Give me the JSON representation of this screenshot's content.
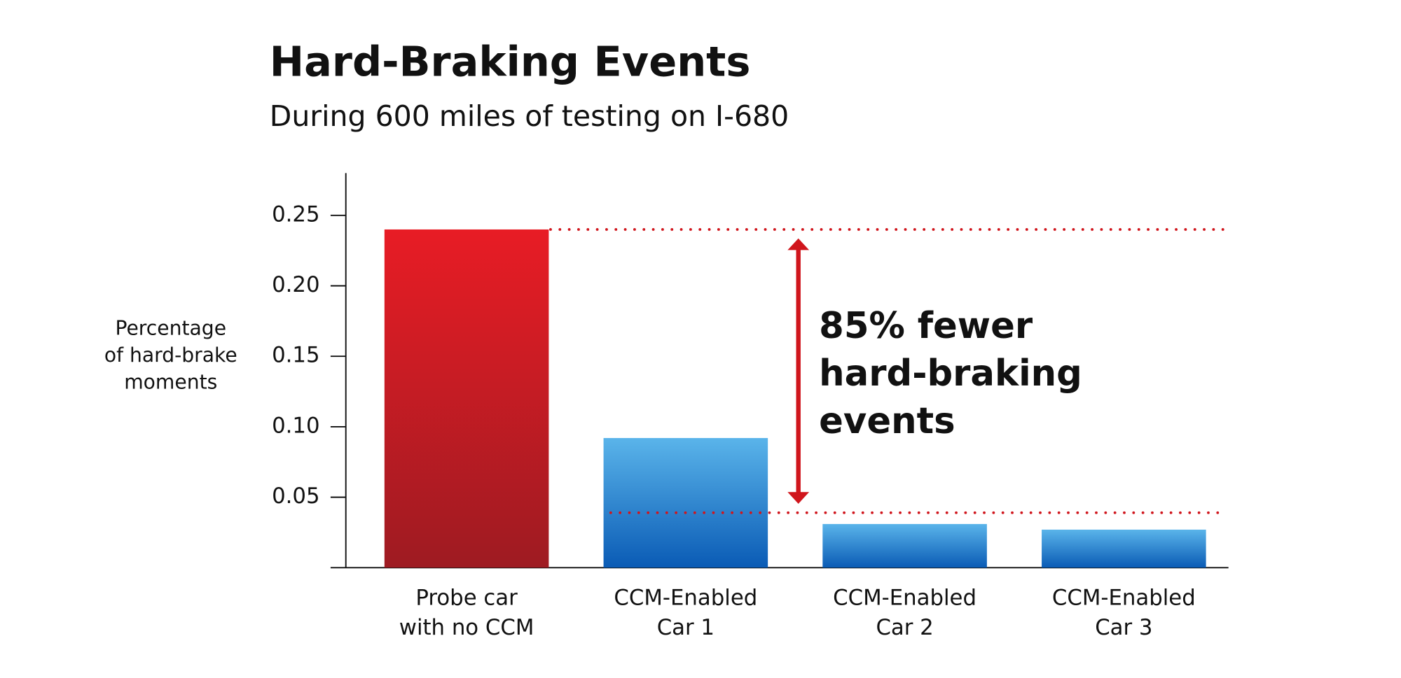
{
  "chart_data": {
    "type": "bar",
    "title": "Hard-Braking Events",
    "subtitle": "During 600 miles of testing on I-680",
    "y_label": [
      "Percentage",
      "of hard-brake",
      "moments"
    ],
    "categories": [
      [
        "Probe car",
        "with no CCM"
      ],
      [
        "CCM-Enabled",
        "Car 1"
      ],
      [
        "CCM-Enabled",
        "Car 2"
      ],
      [
        "CCM-Enabled",
        "Car 3"
      ]
    ],
    "values": [
      0.24,
      0.092,
      0.031,
      0.027
    ],
    "colors": [
      [
        "#e81c25",
        "#9e1b22"
      ],
      [
        "#5ab4ea",
        "#0a5bb5"
      ],
      [
        "#5ab4ea",
        "#0a5bb5"
      ],
      [
        "#5ab4ea",
        "#0a5bb5"
      ]
    ],
    "ylim": [
      0,
      0.28
    ],
    "yticks": [
      {
        "value": 0.05,
        "label": "0.05"
      },
      {
        "value": 0.1,
        "label": "0.10"
      },
      {
        "value": 0.15,
        "label": "0.15"
      },
      {
        "value": 0.2,
        "label": "0.20"
      },
      {
        "value": 0.25,
        "label": "0.25"
      }
    ],
    "reference_lines": [
      0.24,
      0.039
    ],
    "reference_color": "#d0151c",
    "annotation": [
      "85% fewer",
      "hard-braking",
      "events"
    ]
  }
}
